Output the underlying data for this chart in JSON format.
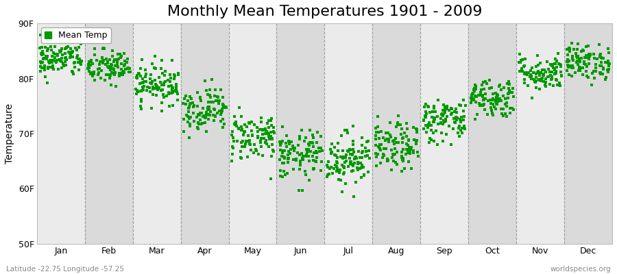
{
  "title": "Monthly Mean Temperatures 1901 - 2009",
  "ylabel": "Temperature",
  "xlabel": "",
  "ylim": [
    50,
    90
  ],
  "yticks": [
    50,
    60,
    70,
    80,
    90
  ],
  "ytick_labels": [
    "50F",
    "60F",
    "70F",
    "80F",
    "90F"
  ],
  "months": [
    "Jan",
    "Feb",
    "Mar",
    "Apr",
    "May",
    "Jun",
    "Jul",
    "Aug",
    "Sep",
    "Oct",
    "Nov",
    "Dec"
  ],
  "month_means": [
    83.5,
    82.0,
    79.0,
    74.5,
    69.5,
    66.0,
    65.5,
    67.5,
    72.5,
    76.5,
    81.0,
    83.0
  ],
  "month_stds": [
    1.6,
    1.6,
    1.8,
    2.0,
    2.2,
    2.2,
    2.4,
    2.2,
    2.0,
    1.8,
    1.6,
    1.6
  ],
  "n_years": 109,
  "scatter_color": "#009900",
  "marker": "s",
  "marker_size": 2.5,
  "legend_label": "Mean Temp",
  "bg_color_light": "#ebebeb",
  "bg_color_dark": "#dadada",
  "grid_color": "#999999",
  "subtitle_left": "Latitude -22.75 Longitude -57.25",
  "subtitle_right": "worldspecies.org",
  "title_fontsize": 16,
  "label_fontsize": 10,
  "tick_fontsize": 9,
  "seed": 42
}
